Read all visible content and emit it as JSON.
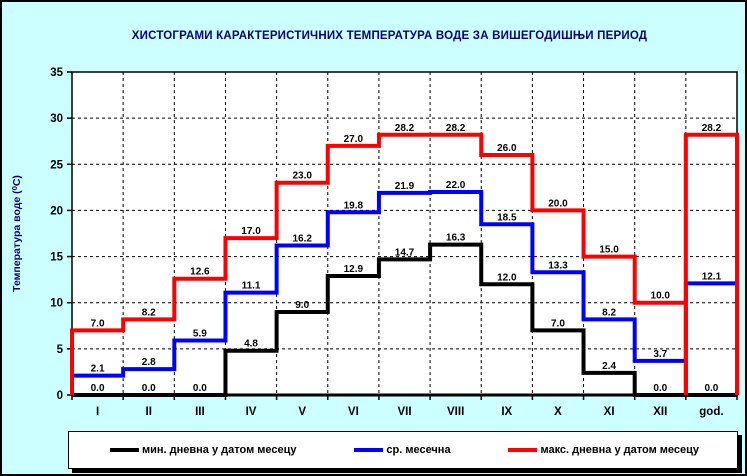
{
  "title": "ХИСТОГРАМИ КАРАКТЕРИСТИЧНИХ ТЕМПЕРАТУРА ВОДЕ ЗА ВИШЕГОДИШЊИ ПЕРИОД",
  "chart_data": {
    "type": "line",
    "variant": "step-histogram",
    "title": "ХИСТОГРАМИ КАРАКТЕРИСТИЧНИХ ТЕМПЕРАТУРА ВОДЕ ЗА ВИШЕГОДИШЊИ ПЕРИОД",
    "ylabel": "Температура воде (⁰C)",
    "xlabel": "",
    "categories": [
      "I",
      "II",
      "III",
      "IV",
      "V",
      "VI",
      "VII",
      "VIII",
      "IX",
      "X",
      "XI",
      "XII",
      "god."
    ],
    "series": [
      {
        "name": "мин. дневна у датом месецу",
        "color": "#000000",
        "values": [
          0.0,
          0.0,
          0.0,
          4.8,
          9.0,
          12.9,
          14.7,
          16.3,
          12.0,
          7.0,
          2.4,
          0.0,
          0.0
        ]
      },
      {
        "name": "ср. месечна",
        "color": "#0000ff",
        "values": [
          2.1,
          2.8,
          5.9,
          11.1,
          16.2,
          19.8,
          21.9,
          22.0,
          18.5,
          13.3,
          8.2,
          3.7,
          12.1
        ]
      },
      {
        "name": "макс. дневна у датом месецу",
        "color": "#ff0000",
        "values": [
          7.0,
          8.2,
          12.6,
          17.0,
          23.0,
          27.0,
          28.2,
          28.2,
          26.0,
          20.0,
          15.0,
          10.0,
          28.2
        ]
      }
    ],
    "ylim": [
      0,
      35
    ],
    "ytick_step": 5,
    "grid": true,
    "value_labels": true,
    "legend_position": "bottom",
    "annual_column_resets_to_zero": true
  },
  "colors": {
    "background": "#ccffff",
    "plot_background": "#ffffff",
    "title_text": "#000080",
    "axis_label_text": "#000080",
    "tick_text": "#000000",
    "grid": "#000000"
  }
}
